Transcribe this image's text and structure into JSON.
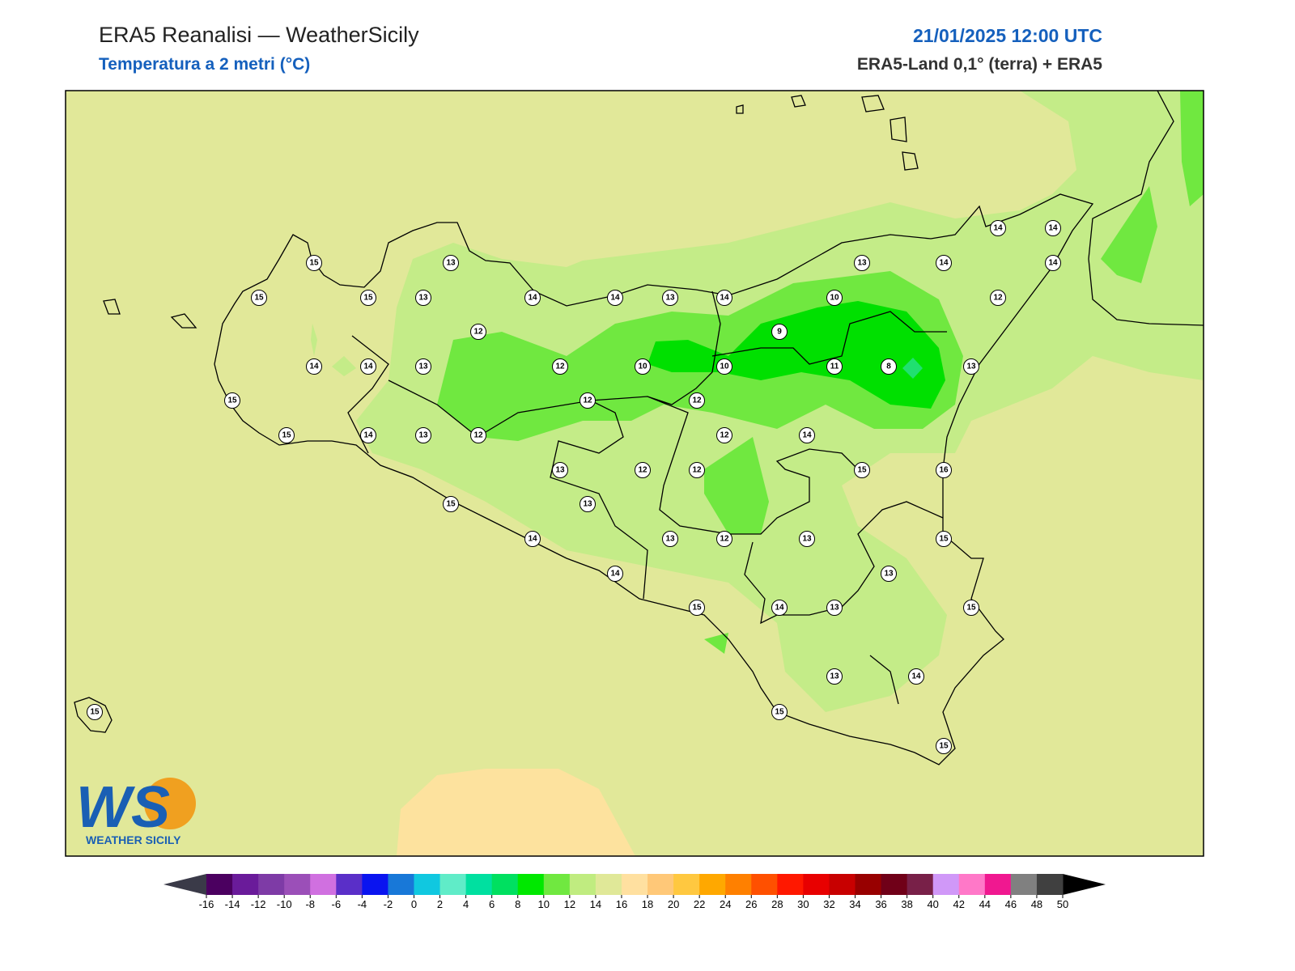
{
  "header": {
    "title": "ERA5 Reanalisi — WeatherSicily",
    "subtitle": "Temperatura a 2 metri (°C)",
    "datetime": "21/01/2025 12:00 UTC",
    "source": "ERA5-Land 0,1° (terra) + ERA5"
  },
  "stations": [
    15,
    13,
    15,
    15,
    13,
    14,
    14,
    13,
    14,
    13,
    14,
    14,
    14,
    14,
    10,
    12,
    12,
    9,
    14,
    14,
    13,
    12,
    10,
    10,
    11,
    8,
    13,
    15,
    12,
    12,
    15,
    14,
    13,
    12,
    12,
    14,
    13,
    12,
    12,
    15,
    16,
    15,
    13,
    14,
    13,
    12,
    13,
    15,
    14,
    13,
    15,
    14,
    13,
    15,
    13,
    14,
    15,
    15,
    15
  ],
  "colorbar": {
    "ticks": [
      -16,
      -14,
      -12,
      -10,
      -8,
      -6,
      -4,
      -2,
      0,
      2,
      4,
      6,
      8,
      10,
      12,
      14,
      16,
      18,
      20,
      22,
      24,
      26,
      28,
      30,
      32,
      34,
      36,
      38,
      40,
      42,
      44,
      46,
      48,
      50
    ],
    "colors": [
      "#4b0060",
      "#6a1b9a",
      "#7e3ba6",
      "#9b4fb8",
      "#d070e0",
      "#5a2fc8",
      "#0a14f0",
      "#1878d8",
      "#10c8e0",
      "#60ecc8",
      "#00e0a0",
      "#00e060",
      "#00e800",
      "#70e840",
      "#c0ec80",
      "#e0e898",
      "#ffe0a0",
      "#ffc878",
      "#ffc840",
      "#ffa800",
      "#ff8000",
      "#ff5000",
      "#ff1800",
      "#e80000",
      "#c80000",
      "#980000",
      "#700018",
      "#782048",
      "#d098f8",
      "#ff78c8",
      "#f01890",
      "#808080",
      "#404040"
    ],
    "under_color": "#3a3a48",
    "over_color": "#000000"
  },
  "logo": {
    "mark": "WS",
    "text": "WEATHER SICILY"
  }
}
